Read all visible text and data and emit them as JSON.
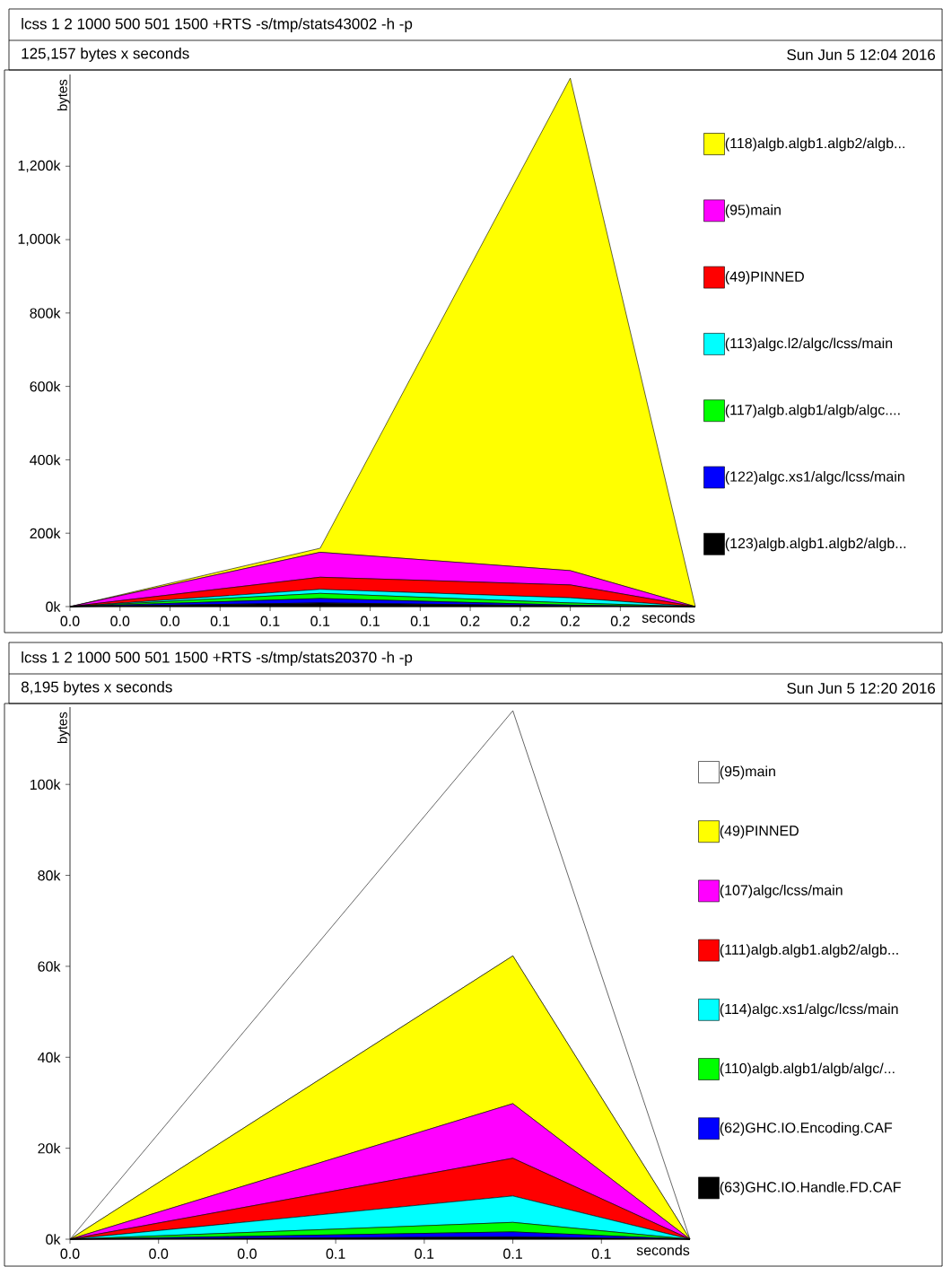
{
  "chart_data": [
    {
      "type": "area",
      "stacked": true,
      "title": "lcss 1 2 1000 500 501 1500 +RTS -s/tmp/stats43002 -h -p",
      "subtitle": "125,157 bytes x seconds",
      "annotations": [
        "Sun Jun  5 12:04 2016"
      ],
      "xlabel": "seconds",
      "ylabel": "bytes",
      "legend": "right",
      "x": [
        0,
        0.1,
        0.2,
        0.25
      ],
      "xlim": [
        0,
        0.25
      ],
      "xticks": [
        {
          "value": 0,
          "label": "0.0"
        },
        {
          "value": 0.02,
          "label": "0.0"
        },
        {
          "value": 0.04,
          "label": "0.0"
        },
        {
          "value": 0.06,
          "label": "0.1"
        },
        {
          "value": 0.08,
          "label": "0.1"
        },
        {
          "value": 0.1,
          "label": "0.1"
        },
        {
          "value": 0.12,
          "label": "0.1"
        },
        {
          "value": 0.14,
          "label": "0.1"
        },
        {
          "value": 0.16,
          "label": "0.2"
        },
        {
          "value": 0.18,
          "label": "0.2"
        },
        {
          "value": 0.2,
          "label": "0.2"
        },
        {
          "value": 0.22,
          "label": "0.2"
        }
      ],
      "ylim": [
        0,
        1450
      ],
      "yticks": [
        {
          "value": 0,
          "label": "0k"
        },
        {
          "value": 200,
          "label": "200k"
        },
        {
          "value": 400,
          "label": "400k"
        },
        {
          "value": 600,
          "label": "600k"
        },
        {
          "value": 800,
          "label": "800k"
        },
        {
          "value": 1000,
          "label": "1,000k"
        },
        {
          "value": 1200,
          "label": "1,200k"
        }
      ],
      "series": [
        {
          "name": "(123)algb.algb1.algb2/algb...",
          "color": "#000000",
          "values": [
            0,
            10,
            2,
            0
          ]
        },
        {
          "name": "(122)algc.xs1/algc/lcss/main",
          "color": "#0000ff",
          "values": [
            0,
            12,
            2,
            0
          ]
        },
        {
          "name": "(117)algb.algb1/algb/algc....",
          "color": "#00ff00",
          "values": [
            0,
            14,
            6,
            0
          ]
        },
        {
          "name": "(113)algc.l2/algc/lcss/main",
          "color": "#00ffff",
          "values": [
            0,
            11,
            14,
            0
          ]
        },
        {
          "name": "(49)PINNED",
          "color": "#ff0000",
          "values": [
            0,
            33,
            35,
            0
          ]
        },
        {
          "name": "(95)main",
          "color": "#ff00ff",
          "values": [
            0,
            68,
            39,
            0
          ]
        },
        {
          "name": "(118)algb.algb1.algb2/algb...",
          "color": "#ffff00",
          "values": [
            0,
            11,
            1342,
            0
          ]
        }
      ]
    },
    {
      "type": "area",
      "stacked": true,
      "title": "lcss 1 2 1000 500 501 1500 +RTS -s/tmp/stats20370 -h -p",
      "subtitle": "8,195 bytes x seconds",
      "annotations": [
        "Sun Jun  5 12:20 2016"
      ],
      "xlabel": "seconds",
      "ylabel": "bytes",
      "legend": "right",
      "x": [
        0,
        0.1,
        0.14
      ],
      "xlim": [
        0,
        0.14
      ],
      "xticks": [
        {
          "value": 0,
          "label": "0.0"
        },
        {
          "value": 0.02,
          "label": "0.0"
        },
        {
          "value": 0.04,
          "label": "0.0"
        },
        {
          "value": 0.06,
          "label": "0.1"
        },
        {
          "value": 0.08,
          "label": "0.1"
        },
        {
          "value": 0.1,
          "label": "0.1"
        },
        {
          "value": 0.12,
          "label": "0.1"
        }
      ],
      "ylim": [
        0,
        117
      ],
      "yticks": [
        {
          "value": 0,
          "label": "0k"
        },
        {
          "value": 20,
          "label": "20k"
        },
        {
          "value": 40,
          "label": "40k"
        },
        {
          "value": 60,
          "label": "60k"
        },
        {
          "value": 80,
          "label": "80k"
        },
        {
          "value": 100,
          "label": "100k"
        }
      ],
      "series": [
        {
          "name": "(63)GHC.IO.Handle.FD.CAF",
          "color": "#000000",
          "values": [
            0,
            0.5,
            0
          ]
        },
        {
          "name": "(62)GHC.IO.Encoding.CAF",
          "color": "#0000ff",
          "values": [
            0,
            1.1,
            0
          ]
        },
        {
          "name": "(110)algb.algb1/algb/algc/...",
          "color": "#00ff00",
          "values": [
            0,
            2.1,
            0
          ]
        },
        {
          "name": "(114)algc.xs1/algc/lcss/main",
          "color": "#00ffff",
          "values": [
            0,
            5.8,
            0
          ]
        },
        {
          "name": "(111)algb.algb1.algb2/algb...",
          "color": "#ff0000",
          "values": [
            0,
            8.3,
            0
          ]
        },
        {
          "name": "(107)algc/lcss/main",
          "color": "#ff00ff",
          "values": [
            0,
            12.0,
            0
          ]
        },
        {
          "name": "(49)PINNED",
          "color": "#ffff00",
          "values": [
            0,
            32.5,
            0
          ]
        },
        {
          "name": "(95)main",
          "color": "#ffffff",
          "values": [
            0,
            53.9,
            0
          ]
        }
      ]
    }
  ]
}
